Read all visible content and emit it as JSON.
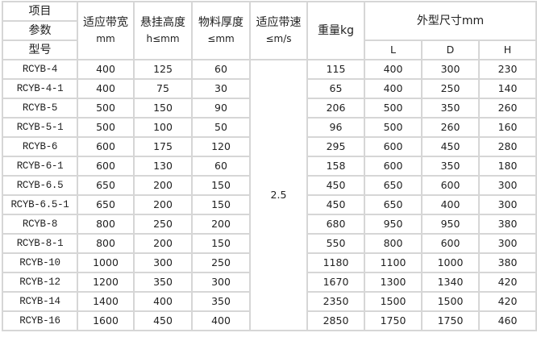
{
  "header": {
    "item": "项目",
    "param": "参数",
    "model": "型号",
    "belt_width": {
      "label": "适应带宽",
      "unit": "mm"
    },
    "hang_height": {
      "label": "悬挂高度",
      "unit": "h≤mm"
    },
    "material_thickness": {
      "label": "物料厚度",
      "unit": "≤mm"
    },
    "belt_speed": {
      "label": "适应带速",
      "unit": "≤m/s"
    },
    "weight": "重量kg",
    "dimensions": "外型尺寸mm",
    "L": "L",
    "D": "D",
    "H": "H"
  },
  "belt_speed_value": "2.5",
  "rows": [
    {
      "model": "RCYB-4",
      "width": "400",
      "height": "125",
      "thickness": "60",
      "weight": "115",
      "L": "400",
      "D": "300",
      "H": "230"
    },
    {
      "model": "RCYB-4-1",
      "width": "400",
      "height": "75",
      "thickness": "30",
      "weight": "65",
      "L": "400",
      "D": "250",
      "H": "140"
    },
    {
      "model": "RCYB-5",
      "width": "500",
      "height": "150",
      "thickness": "90",
      "weight": "206",
      "L": "500",
      "D": "350",
      "H": "260"
    },
    {
      "model": "RCYB-5-1",
      "width": "500",
      "height": "100",
      "thickness": "50",
      "weight": "96",
      "L": "500",
      "D": "260",
      "H": "160"
    },
    {
      "model": "RCYB-6",
      "width": "600",
      "height": "175",
      "thickness": "120",
      "weight": "295",
      "L": "600",
      "D": "450",
      "H": "280"
    },
    {
      "model": "RCYB-6-1",
      "width": "600",
      "height": "130",
      "thickness": "60",
      "weight": "158",
      "L": "600",
      "D": "350",
      "H": "180"
    },
    {
      "model": "RCYB-6.5",
      "width": "650",
      "height": "200",
      "thickness": "150",
      "weight": "450",
      "L": "650",
      "D": "600",
      "H": "300"
    },
    {
      "model": "RCYB-6.5-1",
      "width": "650",
      "height": "200",
      "thickness": "150",
      "weight": "450",
      "L": "650",
      "D": "400",
      "H": "300"
    },
    {
      "model": "RCYB-8",
      "width": "800",
      "height": "250",
      "thickness": "200",
      "weight": "680",
      "L": "950",
      "D": "950",
      "H": "380"
    },
    {
      "model": "RCYB-8-1",
      "width": "800",
      "height": "200",
      "thickness": "150",
      "weight": "550",
      "L": "800",
      "D": "600",
      "H": "300"
    },
    {
      "model": "RCYB-10",
      "width": "1000",
      "height": "300",
      "thickness": "250",
      "weight": "1180",
      "L": "1100",
      "D": "1000",
      "H": "380"
    },
    {
      "model": "RCYB-12",
      "width": "1200",
      "height": "350",
      "thickness": "300",
      "weight": "1670",
      "L": "1300",
      "D": "1340",
      "H": "420"
    },
    {
      "model": "RCYB-14",
      "width": "1400",
      "height": "400",
      "thickness": "350",
      "weight": "2350",
      "L": "1500",
      "D": "1500",
      "H": "420"
    },
    {
      "model": "RCYB-16",
      "width": "1600",
      "height": "450",
      "thickness": "400",
      "weight": "2850",
      "L": "1750",
      "D": "1750",
      "H": "460"
    }
  ]
}
